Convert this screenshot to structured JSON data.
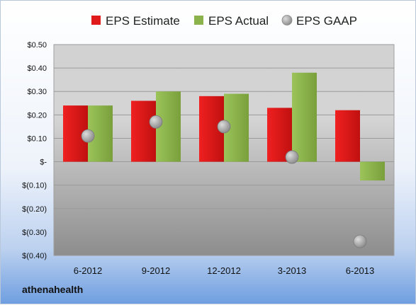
{
  "brand": "athenahealth",
  "chart_data": {
    "type": "bar",
    "categories": [
      "6-2012",
      "9-2012",
      "12-2012",
      "3-2013",
      "6-2013"
    ],
    "series": [
      {
        "name": "EPS Estimate",
        "type": "bar",
        "values": [
          0.24,
          0.26,
          0.28,
          0.23,
          0.22
        ],
        "color": "#e01a1a"
      },
      {
        "name": "EPS Actual",
        "type": "bar",
        "values": [
          0.24,
          0.3,
          0.29,
          0.38,
          -0.08
        ],
        "color": "#8cb34b"
      },
      {
        "name": "EPS GAAP",
        "type": "scatter",
        "values": [
          0.11,
          0.17,
          0.15,
          0.02,
          -0.34
        ],
        "color": "#9a9a9a"
      }
    ],
    "ylim": [
      -0.4,
      0.5
    ],
    "yticks": [
      0.5,
      0.4,
      0.3,
      0.2,
      0.1,
      0,
      -0.1,
      -0.2,
      -0.3,
      -0.4
    ],
    "ytick_labels": [
      "$0.50",
      "$0.40",
      "$0.30",
      "$0.20",
      "$0.10",
      "$-",
      "$(0.10)",
      "$(0.20)",
      "$(0.30)",
      "$(0.40)"
    ],
    "grid": true,
    "legend_position": "top"
  }
}
